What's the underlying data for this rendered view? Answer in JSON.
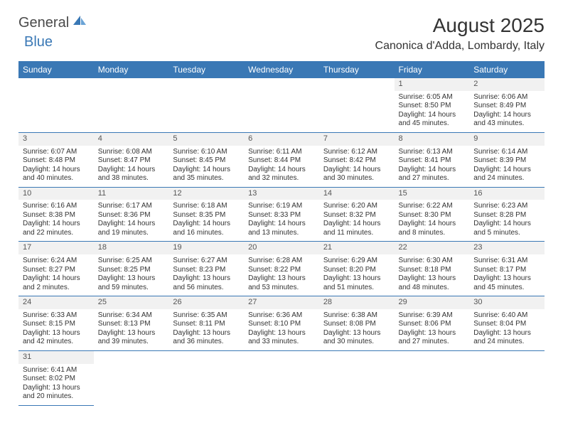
{
  "logo": {
    "textA": "General",
    "textB": "Blue"
  },
  "title": "August 2025",
  "location": "Canonica d'Adda, Lombardy, Italy",
  "colors": {
    "header_bg": "#3a78b5",
    "header_fg": "#ffffff",
    "daynum_bg": "#f1f1f1",
    "rule": "#3a78b5",
    "text": "#333333"
  },
  "weekdays": [
    "Sunday",
    "Monday",
    "Tuesday",
    "Wednesday",
    "Thursday",
    "Friday",
    "Saturday"
  ],
  "cells": [
    null,
    null,
    null,
    null,
    null,
    {
      "day": "1",
      "sunrise": "Sunrise: 6:05 AM",
      "sunset": "Sunset: 8:50 PM",
      "daylight": "Daylight: 14 hours and 45 minutes."
    },
    {
      "day": "2",
      "sunrise": "Sunrise: 6:06 AM",
      "sunset": "Sunset: 8:49 PM",
      "daylight": "Daylight: 14 hours and 43 minutes."
    },
    {
      "day": "3",
      "sunrise": "Sunrise: 6:07 AM",
      "sunset": "Sunset: 8:48 PM",
      "daylight": "Daylight: 14 hours and 40 minutes."
    },
    {
      "day": "4",
      "sunrise": "Sunrise: 6:08 AM",
      "sunset": "Sunset: 8:47 PM",
      "daylight": "Daylight: 14 hours and 38 minutes."
    },
    {
      "day": "5",
      "sunrise": "Sunrise: 6:10 AM",
      "sunset": "Sunset: 8:45 PM",
      "daylight": "Daylight: 14 hours and 35 minutes."
    },
    {
      "day": "6",
      "sunrise": "Sunrise: 6:11 AM",
      "sunset": "Sunset: 8:44 PM",
      "daylight": "Daylight: 14 hours and 32 minutes."
    },
    {
      "day": "7",
      "sunrise": "Sunrise: 6:12 AM",
      "sunset": "Sunset: 8:42 PM",
      "daylight": "Daylight: 14 hours and 30 minutes."
    },
    {
      "day": "8",
      "sunrise": "Sunrise: 6:13 AM",
      "sunset": "Sunset: 8:41 PM",
      "daylight": "Daylight: 14 hours and 27 minutes."
    },
    {
      "day": "9",
      "sunrise": "Sunrise: 6:14 AM",
      "sunset": "Sunset: 8:39 PM",
      "daylight": "Daylight: 14 hours and 24 minutes."
    },
    {
      "day": "10",
      "sunrise": "Sunrise: 6:16 AM",
      "sunset": "Sunset: 8:38 PM",
      "daylight": "Daylight: 14 hours and 22 minutes."
    },
    {
      "day": "11",
      "sunrise": "Sunrise: 6:17 AM",
      "sunset": "Sunset: 8:36 PM",
      "daylight": "Daylight: 14 hours and 19 minutes."
    },
    {
      "day": "12",
      "sunrise": "Sunrise: 6:18 AM",
      "sunset": "Sunset: 8:35 PM",
      "daylight": "Daylight: 14 hours and 16 minutes."
    },
    {
      "day": "13",
      "sunrise": "Sunrise: 6:19 AM",
      "sunset": "Sunset: 8:33 PM",
      "daylight": "Daylight: 14 hours and 13 minutes."
    },
    {
      "day": "14",
      "sunrise": "Sunrise: 6:20 AM",
      "sunset": "Sunset: 8:32 PM",
      "daylight": "Daylight: 14 hours and 11 minutes."
    },
    {
      "day": "15",
      "sunrise": "Sunrise: 6:22 AM",
      "sunset": "Sunset: 8:30 PM",
      "daylight": "Daylight: 14 hours and 8 minutes."
    },
    {
      "day": "16",
      "sunrise": "Sunrise: 6:23 AM",
      "sunset": "Sunset: 8:28 PM",
      "daylight": "Daylight: 14 hours and 5 minutes."
    },
    {
      "day": "17",
      "sunrise": "Sunrise: 6:24 AM",
      "sunset": "Sunset: 8:27 PM",
      "daylight": "Daylight: 14 hours and 2 minutes."
    },
    {
      "day": "18",
      "sunrise": "Sunrise: 6:25 AM",
      "sunset": "Sunset: 8:25 PM",
      "daylight": "Daylight: 13 hours and 59 minutes."
    },
    {
      "day": "19",
      "sunrise": "Sunrise: 6:27 AM",
      "sunset": "Sunset: 8:23 PM",
      "daylight": "Daylight: 13 hours and 56 minutes."
    },
    {
      "day": "20",
      "sunrise": "Sunrise: 6:28 AM",
      "sunset": "Sunset: 8:22 PM",
      "daylight": "Daylight: 13 hours and 53 minutes."
    },
    {
      "day": "21",
      "sunrise": "Sunrise: 6:29 AM",
      "sunset": "Sunset: 8:20 PM",
      "daylight": "Daylight: 13 hours and 51 minutes."
    },
    {
      "day": "22",
      "sunrise": "Sunrise: 6:30 AM",
      "sunset": "Sunset: 8:18 PM",
      "daylight": "Daylight: 13 hours and 48 minutes."
    },
    {
      "day": "23",
      "sunrise": "Sunrise: 6:31 AM",
      "sunset": "Sunset: 8:17 PM",
      "daylight": "Daylight: 13 hours and 45 minutes."
    },
    {
      "day": "24",
      "sunrise": "Sunrise: 6:33 AM",
      "sunset": "Sunset: 8:15 PM",
      "daylight": "Daylight: 13 hours and 42 minutes."
    },
    {
      "day": "25",
      "sunrise": "Sunrise: 6:34 AM",
      "sunset": "Sunset: 8:13 PM",
      "daylight": "Daylight: 13 hours and 39 minutes."
    },
    {
      "day": "26",
      "sunrise": "Sunrise: 6:35 AM",
      "sunset": "Sunset: 8:11 PM",
      "daylight": "Daylight: 13 hours and 36 minutes."
    },
    {
      "day": "27",
      "sunrise": "Sunrise: 6:36 AM",
      "sunset": "Sunset: 8:10 PM",
      "daylight": "Daylight: 13 hours and 33 minutes."
    },
    {
      "day": "28",
      "sunrise": "Sunrise: 6:38 AM",
      "sunset": "Sunset: 8:08 PM",
      "daylight": "Daylight: 13 hours and 30 minutes."
    },
    {
      "day": "29",
      "sunrise": "Sunrise: 6:39 AM",
      "sunset": "Sunset: 8:06 PM",
      "daylight": "Daylight: 13 hours and 27 minutes."
    },
    {
      "day": "30",
      "sunrise": "Sunrise: 6:40 AM",
      "sunset": "Sunset: 8:04 PM",
      "daylight": "Daylight: 13 hours and 24 minutes."
    },
    {
      "day": "31",
      "sunrise": "Sunrise: 6:41 AM",
      "sunset": "Sunset: 8:02 PM",
      "daylight": "Daylight: 13 hours and 20 minutes."
    },
    null,
    null,
    null,
    null,
    null,
    null
  ]
}
